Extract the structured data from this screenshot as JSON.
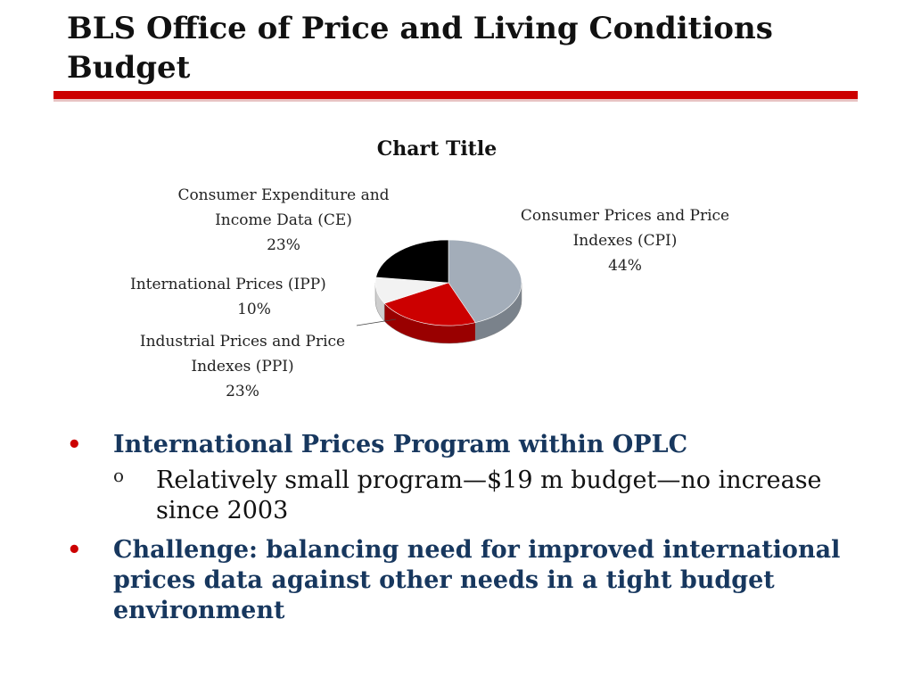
{
  "slide": {
    "title": "BLS Office of Price and Living Conditions Budget"
  },
  "chart_data": {
    "type": "pie",
    "title": "Chart Title",
    "slices": [
      {
        "label": "Consumer Prices and Price Indexes (CPI)",
        "label_lines": [
          "Consumer Prices and Price",
          "Indexes (CPI)"
        ],
        "percent_label": "44%",
        "value": 44,
        "color": "#a3adb9"
      },
      {
        "label": "Industrial Prices and Price Indexes (PPI)",
        "label_lines": [
          "Industrial Prices and Price",
          "Indexes (PPI)"
        ],
        "percent_label": "23%",
        "value": 23,
        "color": "#cc0000"
      },
      {
        "label": "International Prices (IPP)",
        "label_lines": [
          "International Prices        (IPP)"
        ],
        "percent_label": "10%",
        "value": 10,
        "color": "#f2f2f2"
      },
      {
        "label": "Consumer Expenditure and Income Data (CE)",
        "label_lines": [
          "Consumer Expenditure and",
          "Income Data (CE)"
        ],
        "percent_label": "23%",
        "value": 23,
        "color": "#000000"
      }
    ]
  },
  "bullets": [
    {
      "text": "International Prices Program within OPLC",
      "sub": "Relatively small program—$19 m budget—no increase since 2003"
    },
    {
      "text": "Challenge: balancing need for improved international prices data against other needs in a tight budget environment",
      "sub": ""
    }
  ],
  "marks": {
    "bullet": "•",
    "sub_bullet": "o"
  }
}
